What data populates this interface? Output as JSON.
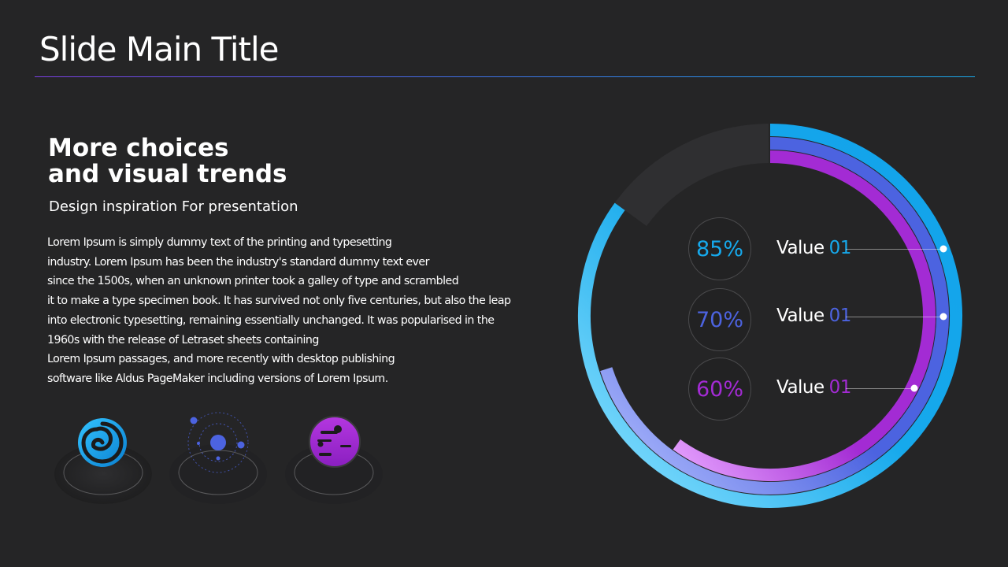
{
  "slide": {
    "title": "Slide Main Title",
    "headline_line1": "More choices",
    "headline_line2": "and visual trends",
    "subtitle": "Design inspiration For presentation",
    "body_lines": [
      "Lorem Ipsum is simply dummy text of the printing and typesetting",
      "industry. Lorem Ipsum has been the industry's standard dummy text ever",
      "since the 1500s, when an unknown printer took a galley of type and scrambled",
      "it to make a type specimen book. It has survived not only five centuries, but also the leap",
      "into electronic typesetting, remaining essentially unchanged. It was popularised in the",
      "1960s with the release of Letraset sheets containing",
      "Lorem Ipsum passages, and more recently with desktop publishing",
      "software like Aldus PageMaker including versions of Lorem Ipsum."
    ]
  },
  "icons": [
    "swirl-icon",
    "orbit-icon",
    "planet-icon"
  ],
  "colors": {
    "background": "#252526",
    "cyan": "#16a9ec",
    "blue": "#4c63e0",
    "purple": "#a32bd4",
    "track": "#2f2f31"
  },
  "chart_data": {
    "type": "radial-bar",
    "series": [
      {
        "value": 85,
        "value_text": "85%",
        "label": "Value",
        "label_num": "01",
        "color": "#16a9ec"
      },
      {
        "value": 70,
        "value_text": "70%",
        "label": "Value",
        "label_num": "01",
        "color": "#4c63e0"
      },
      {
        "value": 60,
        "value_text": "60%",
        "label": "Value",
        "label_num": "01",
        "color": "#a32bd4"
      }
    ],
    "max": 100
  }
}
